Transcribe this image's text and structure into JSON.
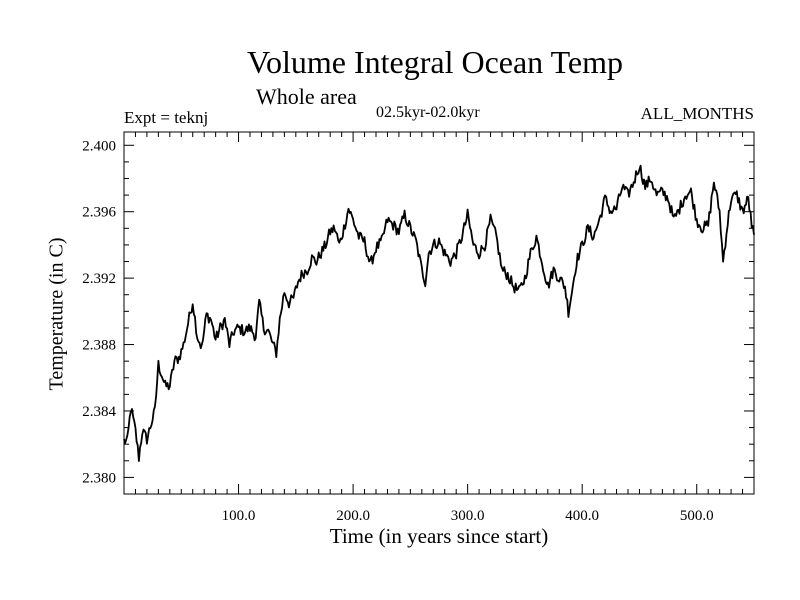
{
  "chart_data": {
    "type": "line",
    "title": "Volume Integral Ocean Temp",
    "subtitle": "Whole area",
    "period": "02.5kyr-02.0kyr",
    "experiment": "Expt = teknj",
    "months": "ALL_MONTHS",
    "xlabel": "Time (in years since start)",
    "ylabel": "Temperature (in C)",
    "xlim": [
      0,
      550
    ],
    "ylim": [
      2.379,
      2.4008
    ],
    "xticks": [
      100,
      200,
      300,
      400,
      500
    ],
    "xtick_labels": [
      "100.0",
      "200.0",
      "300.0",
      "400.0",
      "500.0"
    ],
    "yticks": [
      2.38,
      2.384,
      2.388,
      2.392,
      2.396,
      2.4
    ],
    "ytick_labels": [
      "2.380",
      "2.384",
      "2.388",
      "2.392",
      "2.396",
      "2.400"
    ],
    "grid": false,
    "series": [
      {
        "name": "Volume Integral Ocean Temp",
        "color": "#000000",
        "anchors": [
          [
            0,
            2.3822
          ],
          [
            3,
            2.3822
          ],
          [
            6,
            2.3842
          ],
          [
            8,
            2.3835
          ],
          [
            10,
            2.3828
          ],
          [
            13,
            2.3812
          ],
          [
            16,
            2.3828
          ],
          [
            20,
            2.3823
          ],
          [
            24,
            2.3833
          ],
          [
            27,
            2.384
          ],
          [
            30,
            2.3868
          ],
          [
            33,
            2.3862
          ],
          [
            36,
            2.3855
          ],
          [
            40,
            2.3855
          ],
          [
            44,
            2.387
          ],
          [
            48,
            2.3872
          ],
          [
            52,
            2.388
          ],
          [
            56,
            2.3893
          ],
          [
            60,
            2.3906
          ],
          [
            64,
            2.3885
          ],
          [
            68,
            2.3878
          ],
          [
            72,
            2.3898
          ],
          [
            76,
            2.3895
          ],
          [
            80,
            2.3883
          ],
          [
            84,
            2.389
          ],
          [
            88,
            2.3895
          ],
          [
            92,
            2.388
          ],
          [
            96,
            2.3888
          ],
          [
            100,
            2.389
          ],
          [
            105,
            2.3888
          ],
          [
            110,
            2.389
          ],
          [
            115,
            2.3885
          ],
          [
            118,
            2.3905
          ],
          [
            122,
            2.389
          ],
          [
            126,
            2.3888
          ],
          [
            130,
            2.388
          ],
          [
            133,
            2.3875
          ],
          [
            136,
            2.3895
          ],
          [
            140,
            2.3912
          ],
          [
            144,
            2.3905
          ],
          [
            148,
            2.3908
          ],
          [
            152,
            2.3918
          ],
          [
            156,
            2.3923
          ],
          [
            160,
            2.3925
          ],
          [
            164,
            2.3932
          ],
          [
            168,
            2.393
          ],
          [
            172,
            2.3935
          ],
          [
            176,
            2.394
          ],
          [
            180,
            2.3948
          ],
          [
            184,
            2.395
          ],
          [
            188,
            2.394
          ],
          [
            192,
            2.395
          ],
          [
            196,
            2.3962
          ],
          [
            200,
            2.3955
          ],
          [
            205,
            2.3945
          ],
          [
            210,
            2.3942
          ],
          [
            215,
            2.3928
          ],
          [
            220,
            2.3938
          ],
          [
            225,
            2.3942
          ],
          [
            230,
            2.3955
          ],
          [
            235,
            2.3952
          ],
          [
            240,
            2.3948
          ],
          [
            245,
            2.3958
          ],
          [
            250,
            2.395
          ],
          [
            255,
            2.3942
          ],
          [
            260,
            2.3925
          ],
          [
            263,
            2.3918
          ],
          [
            266,
            2.3935
          ],
          [
            270,
            2.394
          ],
          [
            275,
            2.3942
          ],
          [
            280,
            2.3935
          ],
          [
            285,
            2.393
          ],
          [
            290,
            2.3935
          ],
          [
            295,
            2.3945
          ],
          [
            300,
            2.3958
          ],
          [
            305,
            2.394
          ],
          [
            310,
            2.3935
          ],
          [
            315,
            2.394
          ],
          [
            320,
            2.3955
          ],
          [
            325,
            2.3945
          ],
          [
            330,
            2.3925
          ],
          [
            335,
            2.3922
          ],
          [
            340,
            2.3915
          ],
          [
            345,
            2.3912
          ],
          [
            350,
            2.392
          ],
          [
            355,
            2.3935
          ],
          [
            360,
            2.3945
          ],
          [
            365,
            2.393
          ],
          [
            370,
            2.3915
          ],
          [
            375,
            2.3925
          ],
          [
            380,
            2.392
          ],
          [
            385,
            2.3915
          ],
          [
            388,
            2.39
          ],
          [
            391,
            2.3912
          ],
          [
            395,
            2.393
          ],
          [
            400,
            2.394
          ],
          [
            405,
            2.395
          ],
          [
            410,
            2.3945
          ],
          [
            415,
            2.3955
          ],
          [
            420,
            2.3968
          ],
          [
            425,
            2.396
          ],
          [
            430,
            2.3962
          ],
          [
            435,
            2.3975
          ],
          [
            440,
            2.397
          ],
          [
            445,
            2.3978
          ],
          [
            450,
            2.3988
          ],
          [
            455,
            2.3975
          ],
          [
            460,
            2.398
          ],
          [
            465,
            2.397
          ],
          [
            470,
            2.3972
          ],
          [
            475,
            2.3968
          ],
          [
            480,
            2.3955
          ],
          [
            485,
            2.3962
          ],
          [
            490,
            2.397
          ],
          [
            495,
            2.3972
          ],
          [
            500,
            2.3955
          ],
          [
            505,
            2.395
          ],
          [
            510,
            2.3952
          ],
          [
            515,
            2.3978
          ],
          [
            520,
            2.396
          ],
          [
            523,
            2.393
          ],
          [
            526,
            2.3948
          ],
          [
            530,
            2.3968
          ],
          [
            535,
            2.397
          ],
          [
            540,
            2.396
          ],
          [
            545,
            2.3968
          ],
          [
            548,
            2.3952
          ],
          [
            550,
            2.3945
          ]
        ]
      }
    ]
  }
}
